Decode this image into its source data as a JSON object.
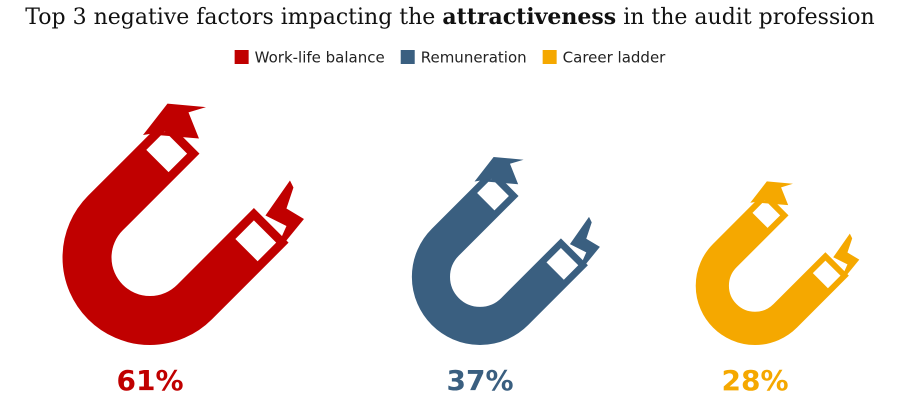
{
  "chart_data": {
    "type": "pictorial",
    "title_parts": [
      "Top 3 negative factors impacting the ",
      "attractiveness",
      " in the audit profession"
    ],
    "categories": [
      "Work-life balance",
      "Remuneration",
      "Career ladder"
    ],
    "values": [
      61,
      37,
      28
    ],
    "value_labels": [
      "61%",
      "37%",
      "28%"
    ],
    "colors": [
      "#c00000",
      "#3a5f80",
      "#f5a800"
    ]
  }
}
